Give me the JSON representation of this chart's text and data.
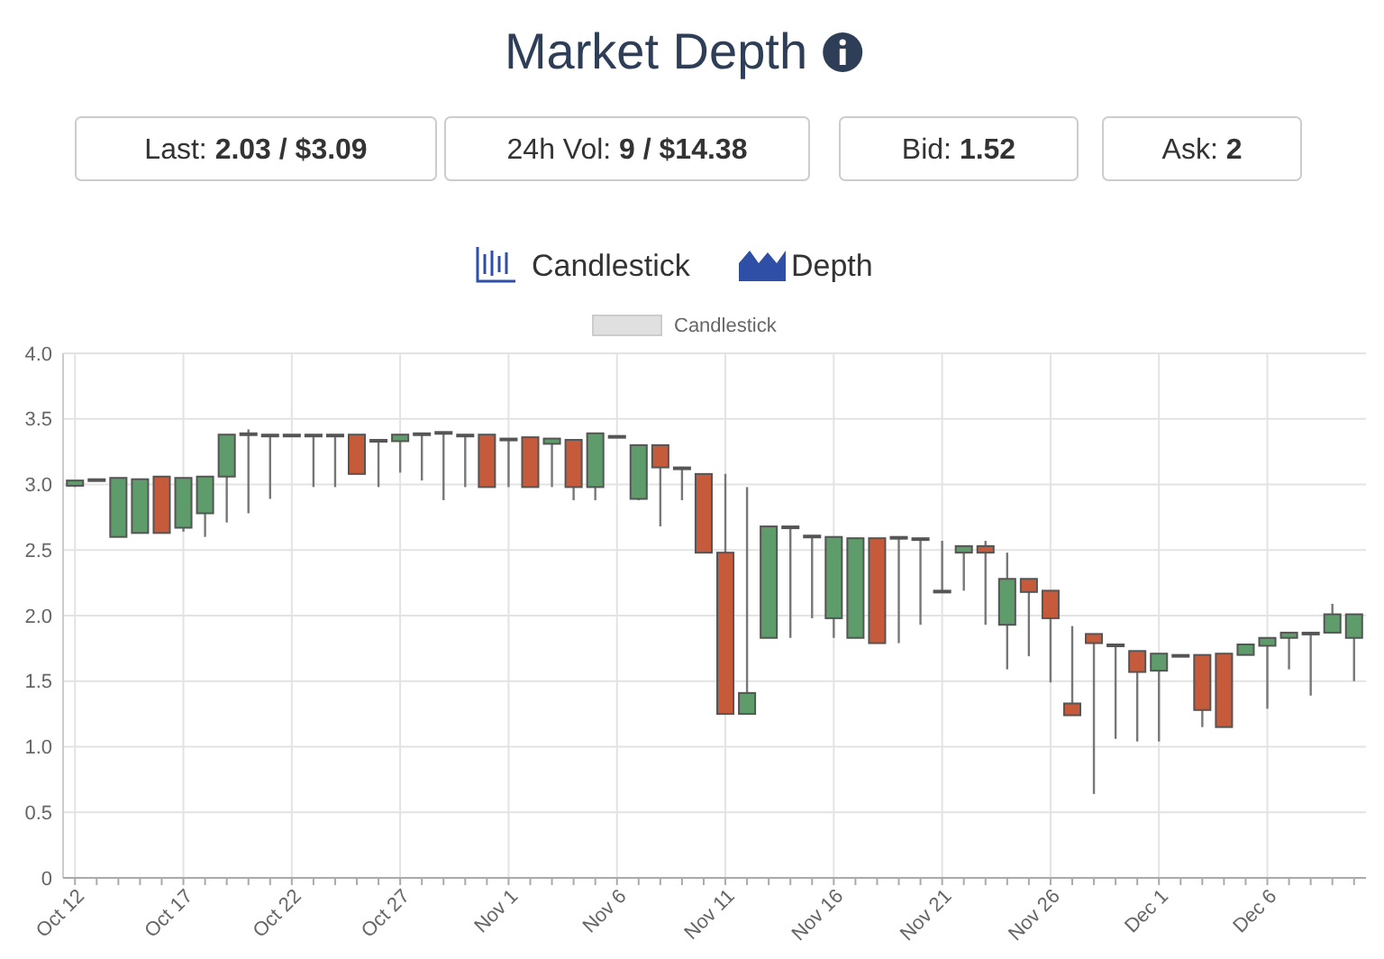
{
  "chart_data": {
    "type": "candlestick",
    "title": "Market Depth",
    "annotations": [
      "Last: 2.03 / $3.09",
      "24h Vol: 9 / $14.38",
      "Bid: 1.52",
      "Ask: 2",
      "Candlestick",
      "Depth"
    ],
    "categories": [
      "Oct 12",
      null,
      null,
      null,
      null,
      "Oct 17",
      null,
      null,
      null,
      null,
      "Oct 22",
      null,
      null,
      null,
      null,
      "Oct 27",
      null,
      null,
      null,
      null,
      "Nov 1",
      null,
      null,
      null,
      null,
      "Nov 6",
      null,
      null,
      null,
      null,
      "Nov 11",
      null,
      null,
      null,
      null,
      "Nov 16",
      null,
      null,
      null,
      null,
      "Nov 21",
      null,
      null,
      null,
      null,
      "Nov 26",
      null,
      null,
      null,
      null,
      "Dec 1",
      null,
      null,
      null,
      null,
      "Dec 6",
      null,
      null,
      null,
      null
    ],
    "series": [
      {
        "name": "Candlestick",
        "ohlc": [
          [
            2.99,
            3.03,
            2.98,
            3.03
          ],
          [
            3.03,
            3.04,
            3.03,
            3.04
          ],
          [
            2.6,
            3.05,
            2.6,
            3.05
          ],
          [
            2.63,
            3.04,
            2.63,
            3.04
          ],
          [
            3.06,
            3.06,
            2.63,
            2.63
          ],
          [
            2.67,
            3.05,
            2.64,
            3.05
          ],
          [
            2.78,
            3.06,
            2.6,
            3.06
          ],
          [
            3.06,
            3.38,
            2.71,
            3.38
          ],
          [
            3.38,
            3.42,
            2.78,
            3.39
          ],
          [
            3.38,
            3.38,
            2.89,
            3.38
          ],
          [
            3.38,
            3.38,
            3.38,
            3.38
          ],
          [
            3.38,
            3.38,
            2.98,
            3.38
          ],
          [
            3.38,
            3.38,
            2.98,
            3.38
          ],
          [
            3.38,
            3.38,
            3.08,
            3.08
          ],
          [
            3.34,
            3.34,
            2.98,
            3.34
          ],
          [
            3.33,
            3.38,
            3.09,
            3.38
          ],
          [
            3.39,
            3.39,
            3.03,
            3.39
          ],
          [
            3.4,
            3.4,
            2.88,
            3.4
          ],
          [
            3.38,
            3.38,
            2.98,
            3.38
          ],
          [
            3.38,
            3.38,
            2.98,
            2.98
          ],
          [
            3.35,
            3.35,
            2.98,
            3.35
          ],
          [
            3.36,
            3.36,
            2.98,
            2.98
          ],
          [
            3.31,
            3.35,
            2.98,
            3.35
          ],
          [
            3.34,
            3.34,
            2.88,
            2.98
          ],
          [
            2.98,
            3.39,
            2.88,
            3.39
          ],
          [
            3.37,
            3.37,
            3.37,
            3.37
          ],
          [
            2.89,
            3.3,
            2.88,
            3.3
          ],
          [
            3.3,
            3.3,
            2.68,
            3.13
          ],
          [
            3.13,
            3.13,
            2.88,
            3.13
          ],
          [
            3.08,
            3.08,
            2.48,
            2.48
          ],
          [
            2.48,
            3.08,
            1.25,
            1.25
          ],
          [
            1.25,
            2.98,
            1.25,
            1.41
          ],
          [
            1.83,
            2.68,
            1.83,
            2.68
          ],
          [
            2.68,
            2.68,
            1.83,
            2.68
          ],
          [
            2.61,
            2.61,
            1.98,
            2.61
          ],
          [
            1.98,
            2.6,
            1.83,
            2.6
          ],
          [
            1.83,
            2.59,
            1.83,
            2.59
          ],
          [
            2.59,
            2.59,
            1.79,
            1.79
          ],
          [
            2.6,
            2.6,
            1.79,
            2.6
          ],
          [
            2.59,
            2.59,
            1.93,
            2.59
          ],
          [
            2.19,
            2.57,
            2.19,
            2.19
          ],
          [
            2.48,
            2.53,
            2.19,
            2.53
          ],
          [
            2.53,
            2.57,
            1.93,
            2.48
          ],
          [
            1.93,
            2.48,
            1.59,
            2.28
          ],
          [
            2.28,
            2.28,
            1.69,
            2.18
          ],
          [
            2.19,
            2.19,
            1.49,
            1.98
          ],
          [
            1.33,
            1.92,
            1.24,
            1.24
          ],
          [
            1.86,
            1.86,
            0.64,
            1.79
          ],
          [
            1.78,
            1.78,
            1.06,
            1.78
          ],
          [
            1.73,
            1.73,
            1.04,
            1.57
          ],
          [
            1.58,
            1.71,
            1.04,
            1.71
          ],
          [
            1.7,
            1.7,
            1.7,
            1.7
          ],
          [
            1.7,
            1.7,
            1.15,
            1.28
          ],
          [
            1.71,
            1.71,
            1.15,
            1.15
          ],
          [
            1.7,
            1.78,
            1.7,
            1.78
          ],
          [
            1.77,
            1.83,
            1.29,
            1.83
          ],
          [
            1.83,
            1.87,
            1.59,
            1.87
          ],
          [
            1.87,
            1.87,
            1.39,
            1.87
          ],
          [
            1.87,
            2.09,
            1.87,
            2.01
          ],
          [
            1.83,
            2.01,
            1.5,
            2.01
          ]
        ],
        "color": "#e0e0e0",
        "colors": [
          "#5e9c6c",
          "#5e9c6c",
          "#5e9c6c",
          "#5e9c6c",
          "#c65b3c",
          "#5e9c6c",
          "#5e9c6c",
          "#5e9c6c",
          "#5e9c6c",
          "#5e9c6c",
          "#5e9c6c",
          "#5e9c6c",
          "#5e9c6c",
          "#c65b3c",
          "#5e9c6c",
          "#5e9c6c",
          "#5e9c6c",
          "#5e9c6c",
          "#5e9c6c",
          "#c65b3c",
          "#5e9c6c",
          "#c65b3c",
          "#5e9c6c",
          "#c65b3c",
          "#5e9c6c",
          "#5e9c6c",
          "#5e9c6c",
          "#c65b3c",
          "#5e9c6c",
          "#c65b3c",
          "#c65b3c",
          "#5e9c6c",
          "#5e9c6c",
          "#5e9c6c",
          "#5e9c6c",
          "#5e9c6c",
          "#5e9c6c",
          "#c65b3c",
          "#5e9c6c",
          "#5e9c6c",
          "#5e9c6c",
          "#5e9c6c",
          "#c65b3c",
          "#5e9c6c",
          "#c65b3c",
          "#c65b3c",
          "#c65b3c",
          "#c65b3c",
          "#5e9c6c",
          "#c65b3c",
          "#5e9c6c",
          "#5e9c6c",
          "#c65b3c",
          "#c65b3c",
          "#5e9c6c",
          "#5e9c6c",
          "#5e9c6c",
          "#5e9c6c",
          "#5e9c6c",
          "#5e9c6c"
        ]
      }
    ],
    "ylim": [
      0,
      4
    ],
    "yticks": [
      0,
      0.5,
      {
        "value": 1,
        "label": "1.0"
      },
      1.5,
      {
        "value": 2,
        "label": "2.0"
      },
      2.5,
      {
        "value": 3,
        "label": "3.0"
      },
      3.5,
      {
        "value": 4,
        "label": "4.0"
      }
    ],
    "grid": true,
    "legend": "top"
  }
}
